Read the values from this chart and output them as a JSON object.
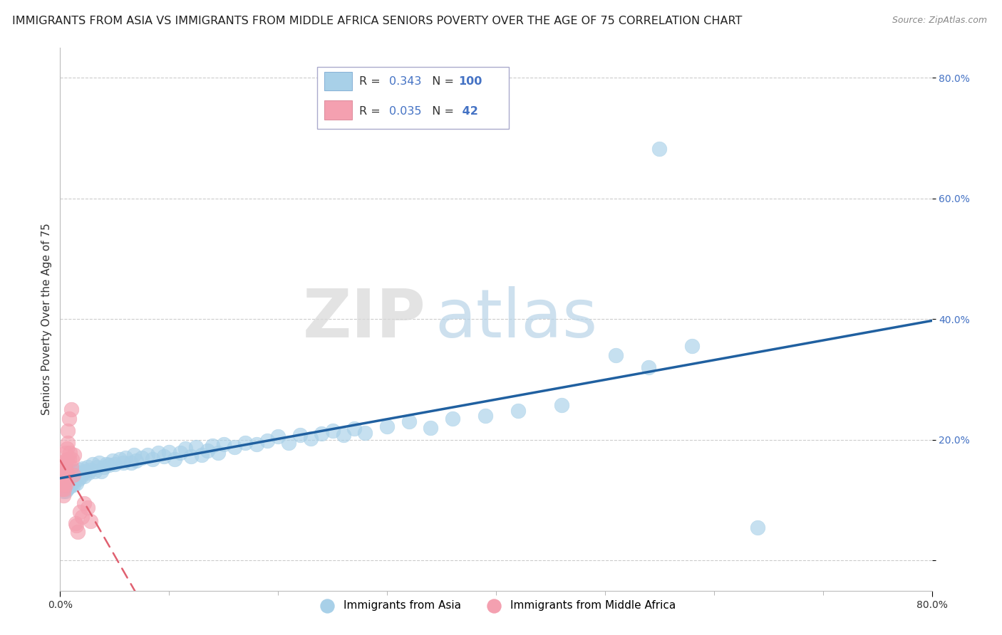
{
  "title": "IMMIGRANTS FROM ASIA VS IMMIGRANTS FROM MIDDLE AFRICA SENIORS POVERTY OVER THE AGE OF 75 CORRELATION CHART",
  "source": "Source: ZipAtlas.com",
  "ylabel": "Seniors Poverty Over the Age of 75",
  "xlim": [
    0.0,
    0.8
  ],
  "ylim": [
    -0.05,
    0.85
  ],
  "color_asia": "#a8d0e8",
  "color_africa": "#f4a0b0",
  "color_asia_line": "#2060a0",
  "color_africa_line": "#e06070",
  "watermark_zip": "ZIP",
  "watermark_atlas": "atlas",
  "background_color": "#ffffff",
  "grid_color": "#cccccc",
  "title_fontsize": 11.5,
  "axis_label_fontsize": 11,
  "tick_fontsize": 10,
  "ytick_color": "#4472c4",
  "asia_x": [
    0.002,
    0.003,
    0.003,
    0.004,
    0.004,
    0.004,
    0.005,
    0.005,
    0.005,
    0.005,
    0.006,
    0.006,
    0.006,
    0.007,
    0.007,
    0.008,
    0.008,
    0.009,
    0.009,
    0.009,
    0.01,
    0.01,
    0.01,
    0.011,
    0.011,
    0.012,
    0.012,
    0.013,
    0.013,
    0.014,
    0.015,
    0.015,
    0.016,
    0.017,
    0.018,
    0.019,
    0.02,
    0.021,
    0.022,
    0.023,
    0.025,
    0.026,
    0.028,
    0.03,
    0.032,
    0.034,
    0.036,
    0.038,
    0.04,
    0.042,
    0.045,
    0.048,
    0.05,
    0.055,
    0.058,
    0.06,
    0.065,
    0.068,
    0.07,
    0.075,
    0.08,
    0.085,
    0.09,
    0.095,
    0.1,
    0.105,
    0.11,
    0.115,
    0.12,
    0.125,
    0.13,
    0.135,
    0.14,
    0.145,
    0.15,
    0.16,
    0.17,
    0.18,
    0.19,
    0.2,
    0.21,
    0.22,
    0.23,
    0.24,
    0.25,
    0.26,
    0.27,
    0.28,
    0.3,
    0.32,
    0.34,
    0.36,
    0.39,
    0.42,
    0.46,
    0.51,
    0.54,
    0.58,
    0.55,
    0.64
  ],
  "asia_y": [
    0.13,
    0.14,
    0.115,
    0.145,
    0.125,
    0.135,
    0.12,
    0.13,
    0.115,
    0.14,
    0.125,
    0.135,
    0.118,
    0.14,
    0.128,
    0.133,
    0.122,
    0.138,
    0.128,
    0.142,
    0.135,
    0.125,
    0.145,
    0.132,
    0.148,
    0.138,
    0.125,
    0.142,
    0.133,
    0.148,
    0.14,
    0.128,
    0.145,
    0.135,
    0.15,
    0.138,
    0.145,
    0.152,
    0.14,
    0.148,
    0.155,
    0.145,
    0.15,
    0.16,
    0.148,
    0.155,
    0.162,
    0.148,
    0.155,
    0.16,
    0.158,
    0.165,
    0.16,
    0.168,
    0.162,
    0.17,
    0.162,
    0.175,
    0.165,
    0.17,
    0.175,
    0.168,
    0.178,
    0.172,
    0.18,
    0.168,
    0.178,
    0.185,
    0.172,
    0.188,
    0.175,
    0.182,
    0.19,
    0.178,
    0.192,
    0.188,
    0.195,
    0.192,
    0.198,
    0.205,
    0.195,
    0.208,
    0.202,
    0.21,
    0.215,
    0.208,
    0.218,
    0.212,
    0.222,
    0.23,
    0.22,
    0.235,
    0.24,
    0.248,
    0.258,
    0.34,
    0.32,
    0.355,
    0.682,
    0.055
  ],
  "africa_x": [
    0.001,
    0.001,
    0.002,
    0.002,
    0.002,
    0.002,
    0.003,
    0.003,
    0.003,
    0.003,
    0.003,
    0.004,
    0.004,
    0.004,
    0.004,
    0.004,
    0.005,
    0.005,
    0.005,
    0.005,
    0.005,
    0.006,
    0.006,
    0.006,
    0.007,
    0.007,
    0.008,
    0.008,
    0.009,
    0.01,
    0.01,
    0.011,
    0.012,
    0.013,
    0.014,
    0.015,
    0.016,
    0.018,
    0.02,
    0.022,
    0.025,
    0.028
  ],
  "africa_y": [
    0.14,
    0.125,
    0.135,
    0.145,
    0.118,
    0.155,
    0.128,
    0.148,
    0.162,
    0.132,
    0.108,
    0.145,
    0.128,
    0.158,
    0.118,
    0.138,
    0.152,
    0.142,
    0.165,
    0.178,
    0.125,
    0.168,
    0.185,
    0.145,
    0.195,
    0.215,
    0.235,
    0.168,
    0.178,
    0.155,
    0.25,
    0.168,
    0.142,
    0.175,
    0.062,
    0.058,
    0.048,
    0.08,
    0.072,
    0.095,
    0.088,
    0.065
  ]
}
